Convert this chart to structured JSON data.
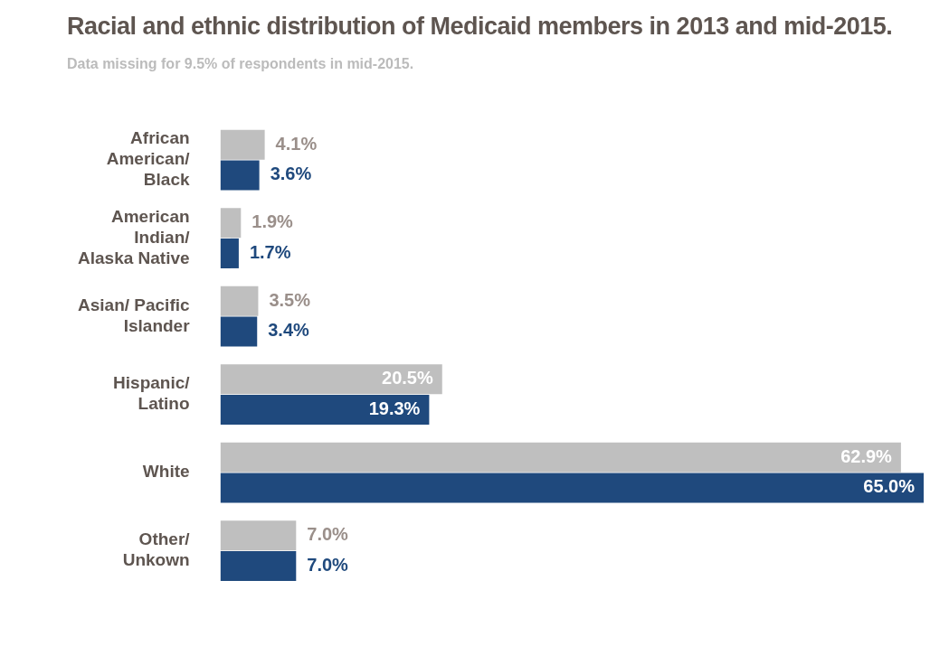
{
  "chart_data": {
    "type": "bar",
    "orientation": "horizontal",
    "title": "Racial and ethnic distribution of Medicaid members in 2013 and mid-2015.",
    "subtitle": "Data missing for 9.5% of respondents in mid-2015.",
    "categories": [
      "African American/ Black",
      "American Indian/ Alaska Native",
      "Asian/ Pacific Islander",
      "Hispanic/ Latino",
      "White",
      "Other/ Unkown"
    ],
    "series": [
      {
        "color": "#bfbfbf",
        "values": [
          4.1,
          1.9,
          3.5,
          20.5,
          62.9,
          7.0
        ],
        "value_labels": [
          "4.1%",
          "1.9%",
          "3.5%",
          "20.5%",
          "62.9%",
          "7.0%"
        ]
      },
      {
        "color": "#1f497d",
        "values": [
          3.6,
          1.7,
          3.4,
          19.3,
          65.0,
          7.0
        ],
        "value_labels": [
          "3.6%",
          "1.7%",
          "3.4%",
          "19.3%",
          "65.0%",
          "7.0%"
        ]
      }
    ],
    "xlim": [
      0,
      65
    ],
    "legend": false
  }
}
